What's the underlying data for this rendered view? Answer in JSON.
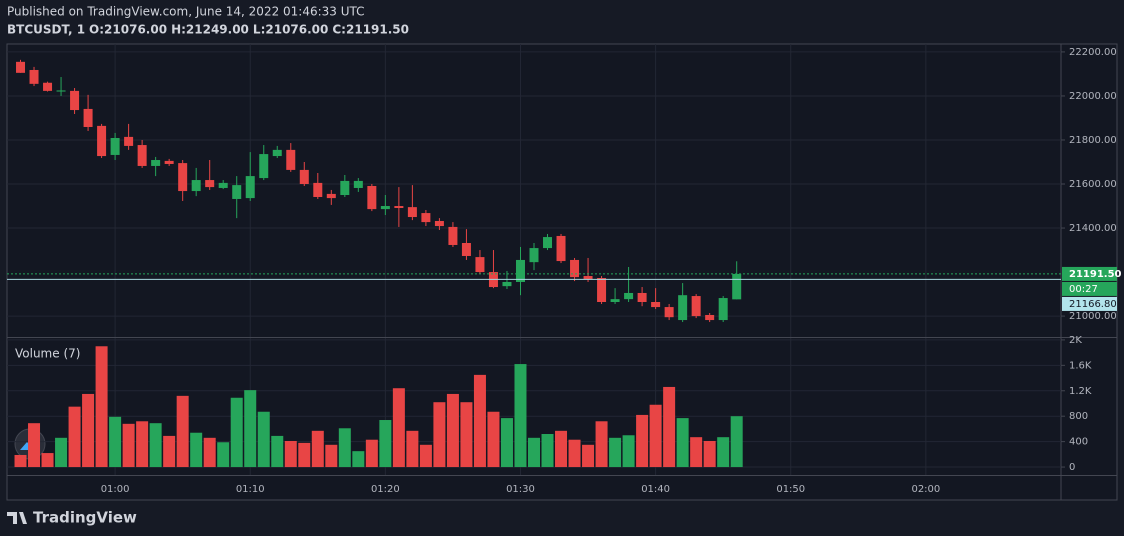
{
  "header": {
    "published": "Published on TradingView.com, June 14, 2022 01:46:33 UTC",
    "brand": "TradingView"
  },
  "chart_data": {
    "type": "candlestick",
    "symbol": "BTCUSDT, 1",
    "ohlc_labels": [
      "O:21076.00",
      "H:21249.00",
      "L:21076.00",
      "C:21191.50"
    ],
    "up_color": "#26a65b",
    "down_color": "#e84545",
    "x": [
      "00:53",
      "00:54",
      "00:55",
      "00:56",
      "00:57",
      "00:58",
      "00:59",
      "01:00",
      "01:01",
      "01:02",
      "01:03",
      "01:04",
      "01:05",
      "01:06",
      "01:07",
      "01:08",
      "01:09",
      "01:10",
      "01:11",
      "01:12",
      "01:13",
      "01:14",
      "01:15",
      "01:16",
      "01:17",
      "01:18",
      "01:19",
      "01:20",
      "01:21",
      "01:22",
      "01:23",
      "01:24",
      "01:25",
      "01:26",
      "01:27",
      "01:28",
      "01:29",
      "01:30",
      "01:31",
      "01:32",
      "01:33",
      "01:34",
      "01:35",
      "01:36",
      "01:37",
      "01:38",
      "01:39",
      "01:40",
      "01:41",
      "01:42",
      "01:43",
      "01:44",
      "01:45",
      "01:46"
    ],
    "open": [
      22155,
      22118,
      22060,
      22020,
      22023,
      21941,
      21864,
      21732,
      21814,
      21777,
      21682,
      21705,
      21695,
      21568,
      21618,
      21582,
      21532,
      21536,
      21627,
      21727,
      21755,
      21664,
      21605,
      21555,
      21550,
      21582,
      21591,
      21486,
      21500,
      21495,
      21468,
      21432,
      21405,
      21332,
      21268,
      21200,
      21136,
      21155,
      21245,
      21309,
      21364,
      21255,
      21182,
      21173,
      21064,
      21077,
      21105,
      21064,
      21041,
      20982,
      21091,
      21005,
      20982,
      21076
    ],
    "high": [
      22164,
      22132,
      22065,
      22086,
      22036,
      22005,
      21873,
      21832,
      21873,
      21800,
      21723,
      21714,
      21709,
      21673,
      21709,
      21618,
      21636,
      21745,
      21777,
      21773,
      21786,
      21700,
      21650,
      21573,
      21641,
      21627,
      21600,
      21550,
      21586,
      21595,
      21482,
      21445,
      21427,
      21395,
      21300,
      21300,
      21205,
      21314,
      21332,
      21373,
      21373,
      21264,
      21264,
      21182,
      21127,
      21223,
      21132,
      21127,
      21055,
      21150,
      21100,
      21014,
      21091,
      21249
    ],
    "low": [
      22105,
      22045,
      22020,
      22000,
      21918,
      21841,
      21718,
      21709,
      21755,
      21673,
      21636,
      21682,
      21523,
      21545,
      21573,
      21577,
      21445,
      21523,
      21618,
      21718,
      21655,
      21591,
      21532,
      21505,
      21541,
      21564,
      21477,
      21459,
      21405,
      21436,
      21409,
      21391,
      21314,
      21255,
      21191,
      21127,
      21123,
      21095,
      21209,
      21300,
      21241,
      21159,
      21155,
      21055,
      21055,
      21064,
      21045,
      21032,
      20982,
      20973,
      20991,
      20973,
      20973,
      21076
    ],
    "close": [
      22105,
      22055,
      22023,
      22025,
      21936,
      21859,
      21727,
      21809,
      21773,
      21682,
      21709,
      21691,
      21568,
      21618,
      21586,
      21605,
      21595,
      21636,
      21736,
      21755,
      21664,
      21600,
      21541,
      21536,
      21614,
      21614,
      21486,
      21500,
      21491,
      21450,
      21427,
      21409,
      21323,
      21273,
      21200,
      21132,
      21155,
      21255,
      21309,
      21359,
      21250,
      21177,
      21168,
      21064,
      21077,
      21105,
      21064,
      21041,
      20995,
      21095,
      21000,
      20982,
      21082,
      21191.5
    ],
    "ylim": [
      20905,
      22236
    ],
    "yticks": [
      {
        "value": 22200,
        "label": "22200.00"
      },
      {
        "value": 22000,
        "label": "22000.00"
      },
      {
        "value": 21800,
        "label": "21800.00"
      },
      {
        "value": 21600,
        "label": "21600.00"
      },
      {
        "value": 21400,
        "label": "21400.00"
      },
      {
        "value": 21000,
        "label": "21000.00"
      }
    ],
    "xlim": [
      "00:52",
      "02:10"
    ],
    "xticks": [
      "01:00",
      "01:10",
      "01:20",
      "01:30",
      "01:40",
      "01:50",
      "02:00"
    ],
    "grid": true,
    "last_price": {
      "value": 21191.5,
      "label": "21191.50"
    },
    "countdown": "00:27",
    "crosshair_price": {
      "value": 21166.8,
      "label": "21166.80"
    },
    "volume": {
      "title": "Volume (7)",
      "values": [
        190,
        690,
        220,
        460,
        950,
        1150,
        1900,
        790,
        680,
        720,
        690,
        490,
        1120,
        540,
        460,
        390,
        1090,
        1210,
        870,
        490,
        410,
        380,
        570,
        350,
        610,
        250,
        430,
        740,
        1240,
        570,
        350,
        1020,
        1150,
        1020,
        1450,
        870,
        770,
        1620,
        460,
        520,
        570,
        430,
        350,
        720,
        460,
        500,
        820,
        980,
        1260,
        770,
        470,
        410,
        470,
        800
      ],
      "ylim": [
        -125,
        2030
      ],
      "yticks": [
        0,
        400,
        800,
        {
          "value": 1200,
          "label": "1.2K"
        },
        {
          "value": 1600,
          "label": "1.6K"
        },
        {
          "value": 2000,
          "label": "2K"
        }
      ]
    }
  }
}
